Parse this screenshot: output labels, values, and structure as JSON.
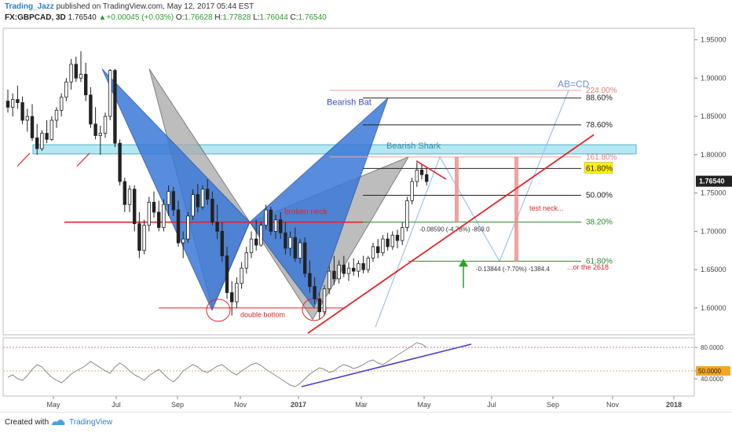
{
  "header": {
    "author": "Trading_Jazz",
    "published": "published on TradingView.com, May 12, 2017 05:44 EST",
    "symbol": "FX:GBPCAD, 3D",
    "last": "1.76540",
    "change": "+0.00045 (+0.03%)",
    "o_label": "O:",
    "o_val": "1.76628",
    "h_label": "H:",
    "h_val": "1.77828",
    "l_label": "L:",
    "l_val": "1.76044",
    "c_label": "C:",
    "c_val": "1.76540"
  },
  "footer": {
    "created": "Created with",
    "brand": "TradingView"
  },
  "colors": {
    "up": "#ffffff",
    "down": "#222222",
    "bat": "#3b78d8",
    "shark": "#a8a8a8",
    "trend": "#e0242a",
    "zone": "#a8e4f0",
    "rsi": "#888888",
    "rsi_trend": "#5040c8"
  },
  "chart_data": {
    "type": "candlestick",
    "symbol": "FX:GBPCAD",
    "interval": "3D",
    "ylim": [
      1.565,
      1.965
    ],
    "y_ticks": [
      "1.95000",
      "1.90000",
      "1.85000",
      "1.80000",
      "1.75000",
      "1.70000",
      "1.65000",
      "1.60000"
    ],
    "x_ticks": [
      "May",
      "Jul",
      "Sep",
      "Nov",
      "2017",
      "Mar",
      "May",
      "Jul",
      "Sep",
      "Nov",
      "2018"
    ],
    "last_price_label": "1.76540",
    "candles_ohlc": [
      [
        1.87,
        1.885,
        1.855,
        1.862
      ],
      [
        1.862,
        1.88,
        1.85,
        1.872
      ],
      [
        1.872,
        1.89,
        1.86,
        1.868
      ],
      [
        1.868,
        1.876,
        1.84,
        1.845
      ],
      [
        1.845,
        1.86,
        1.83,
        1.85
      ],
      [
        1.85,
        1.866,
        1.818,
        1.822
      ],
      [
        1.822,
        1.84,
        1.8,
        1.808
      ],
      [
        1.808,
        1.832,
        1.805,
        1.828
      ],
      [
        1.828,
        1.845,
        1.815,
        1.82
      ],
      [
        1.82,
        1.85,
        1.818,
        1.845
      ],
      [
        1.845,
        1.862,
        1.835,
        1.858
      ],
      [
        1.858,
        1.88,
        1.85,
        1.875
      ],
      [
        1.875,
        1.9,
        1.87,
        1.895
      ],
      [
        1.895,
        1.925,
        1.885,
        1.918
      ],
      [
        1.918,
        1.928,
        1.895,
        1.9
      ],
      [
        1.9,
        1.935,
        1.895,
        1.905
      ],
      [
        1.905,
        1.92,
        1.87,
        1.878
      ],
      [
        1.878,
        1.888,
        1.835,
        1.84
      ],
      [
        1.84,
        1.862,
        1.82,
        1.825
      ],
      [
        1.825,
        1.838,
        1.8,
        1.828
      ],
      [
        1.828,
        1.855,
        1.822,
        1.85
      ],
      [
        1.85,
        1.912,
        1.845,
        1.91
      ],
      [
        1.91,
        1.912,
        1.81,
        1.815
      ],
      [
        1.815,
        1.82,
        1.76,
        1.765
      ],
      [
        1.765,
        1.77,
        1.725,
        1.735
      ],
      [
        1.735,
        1.76,
        1.725,
        1.755
      ],
      [
        1.755,
        1.76,
        1.7,
        1.71
      ],
      [
        1.71,
        1.725,
        1.665,
        1.675
      ],
      [
        1.675,
        1.715,
        1.67,
        1.708
      ],
      [
        1.708,
        1.745,
        1.7,
        1.738
      ],
      [
        1.738,
        1.752,
        1.718,
        1.725
      ],
      [
        1.725,
        1.74,
        1.7,
        1.705
      ],
      [
        1.705,
        1.742,
        1.7,
        1.735
      ],
      [
        1.735,
        1.76,
        1.72,
        1.752
      ],
      [
        1.752,
        1.758,
        1.72,
        1.728
      ],
      [
        1.728,
        1.74,
        1.68,
        1.685
      ],
      [
        1.685,
        1.7,
        1.665,
        1.69
      ],
      [
        1.69,
        1.725,
        1.685,
        1.72
      ],
      [
        1.72,
        1.755,
        1.715,
        1.748
      ],
      [
        1.748,
        1.762,
        1.725,
        1.732
      ],
      [
        1.732,
        1.76,
        1.728,
        1.755
      ],
      [
        1.755,
        1.768,
        1.735,
        1.742
      ],
      [
        1.742,
        1.752,
        1.708,
        1.712
      ],
      [
        1.712,
        1.735,
        1.69,
        1.7
      ],
      [
        1.7,
        1.712,
        1.66,
        1.668
      ],
      [
        1.668,
        1.68,
        1.612,
        1.62
      ],
      [
        1.62,
        1.635,
        1.59,
        1.608
      ],
      [
        1.608,
        1.64,
        1.6,
        1.632
      ],
      [
        1.632,
        1.66,
        1.625,
        1.652
      ],
      [
        1.652,
        1.68,
        1.645,
        1.672
      ],
      [
        1.672,
        1.7,
        1.665,
        1.69
      ],
      [
        1.69,
        1.715,
        1.675,
        1.682
      ],
      [
        1.682,
        1.712,
        1.68,
        1.708
      ],
      [
        1.708,
        1.735,
        1.702,
        1.728
      ],
      [
        1.728,
        1.732,
        1.695,
        1.7
      ],
      [
        1.7,
        1.722,
        1.69,
        1.715
      ],
      [
        1.715,
        1.725,
        1.69,
        1.698
      ],
      [
        1.698,
        1.712,
        1.67,
        1.678
      ],
      [
        1.678,
        1.7,
        1.668,
        1.692
      ],
      [
        1.692,
        1.705,
        1.66,
        1.665
      ],
      [
        1.665,
        1.69,
        1.658,
        1.685
      ],
      [
        1.685,
        1.692,
        1.64,
        1.645
      ],
      [
        1.645,
        1.662,
        1.62,
        1.628
      ],
      [
        1.628,
        1.64,
        1.605,
        1.612
      ],
      [
        1.612,
        1.62,
        1.585,
        1.595
      ],
      [
        1.595,
        1.63,
        1.59,
        1.625
      ],
      [
        1.625,
        1.655,
        1.618,
        1.648
      ],
      [
        1.648,
        1.668,
        1.63,
        1.638
      ],
      [
        1.638,
        1.662,
        1.632,
        1.656
      ],
      [
        1.656,
        1.668,
        1.64,
        1.645
      ],
      [
        1.645,
        1.66,
        1.635,
        1.652
      ],
      [
        1.652,
        1.665,
        1.642,
        1.648
      ],
      [
        1.648,
        1.662,
        1.64,
        1.658
      ],
      [
        1.658,
        1.668,
        1.645,
        1.65
      ],
      [
        1.65,
        1.668,
        1.646,
        1.665
      ],
      [
        1.665,
        1.685,
        1.66,
        1.68
      ],
      [
        1.68,
        1.69,
        1.665,
        1.672
      ],
      [
        1.672,
        1.695,
        1.668,
        1.69
      ],
      [
        1.69,
        1.698,
        1.675,
        1.68
      ],
      [
        1.68,
        1.7,
        1.676,
        1.695
      ],
      [
        1.695,
        1.702,
        1.678,
        1.688
      ],
      [
        1.688,
        1.712,
        1.682,
        1.705
      ],
      [
        1.705,
        1.745,
        1.7,
        1.74
      ],
      [
        1.74,
        1.77,
        1.735,
        1.765
      ],
      [
        1.765,
        1.79,
        1.758,
        1.78
      ],
      [
        1.78,
        1.787,
        1.768,
        1.774
      ],
      [
        1.774,
        1.782,
        1.76,
        1.765
      ]
    ],
    "fib_levels": [
      {
        "label": "224.00%",
        "value": 1.884
      },
      {
        "label": "88.60%",
        "value": 1.874
      },
      {
        "label": "78.60%",
        "value": 1.839
      },
      {
        "label": "161.80%",
        "value": 1.797
      },
      {
        "label": "61.80%",
        "value": 1.782
      },
      {
        "label": "50.00%",
        "value": 1.747
      },
      {
        "label": "38.20%",
        "value": 1.712
      },
      {
        "label": "61.80%",
        "value": 1.661
      }
    ],
    "annotations": {
      "bearish_bat": "Bearish Bat",
      "bearish_shark": "Bearish Shark",
      "abcd": "AB=CD",
      "broken_neck": "broken neck",
      "double_bottom": "double bottom",
      "test_neck": "test neck...",
      "or_2618": "...or the 2618",
      "measure1": "-0.08590 (-4.78%) -859.0",
      "measure2": "-0.13844 (-7.70%) -1384.4"
    },
    "rsi": {
      "ticks": [
        "80.0000",
        "50.0000",
        "40.0000"
      ],
      "current_label": "50.0000",
      "levels": [
        80,
        50
      ],
      "ylim": [
        20,
        90
      ],
      "values": [
        42,
        45,
        40,
        38,
        44,
        52,
        58,
        55,
        48,
        42,
        38,
        35,
        40,
        46,
        50,
        53,
        57,
        62,
        58,
        54,
        50,
        47,
        55,
        60,
        56,
        50,
        45,
        42,
        38,
        44,
        48,
        52,
        46,
        40,
        36,
        42,
        50,
        54,
        58,
        55,
        50,
        48,
        52,
        56,
        58,
        53,
        48,
        45,
        50,
        54,
        58,
        60,
        57,
        52,
        48,
        44,
        40,
        36,
        32,
        30,
        34,
        40,
        46,
        50,
        54,
        52,
        48,
        50,
        55,
        58,
        56,
        53,
        55,
        58,
        62,
        64,
        60,
        58,
        62,
        66,
        70,
        74,
        78,
        82,
        86,
        84,
        80
      ]
    }
  }
}
